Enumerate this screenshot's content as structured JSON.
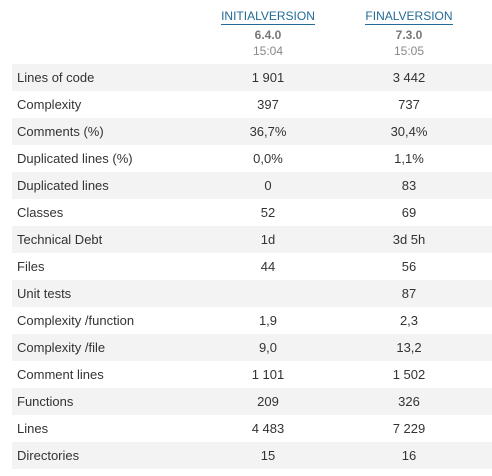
{
  "columns": [
    {
      "link": "INITIALVERSION",
      "version": "6.4.0",
      "time": "15:04"
    },
    {
      "link": "FINALVERSION",
      "version": "7.3.0",
      "time": "15:05"
    }
  ],
  "metrics": [
    {
      "label": "Lines of code",
      "initial": "1 901",
      "final": "3 442"
    },
    {
      "label": "Complexity",
      "initial": "397",
      "final": "737"
    },
    {
      "label": "Comments (%)",
      "initial": "36,7%",
      "final": "30,4%"
    },
    {
      "label": "Duplicated lines (%)",
      "initial": "0,0%",
      "final": "1,1%"
    },
    {
      "label": "Duplicated lines",
      "initial": "0",
      "final": "83"
    },
    {
      "label": "Classes",
      "initial": "52",
      "final": "69"
    },
    {
      "label": "Technical Debt",
      "initial": "1d",
      "final": "3d 5h"
    },
    {
      "label": "Files",
      "initial": "44",
      "final": "56"
    },
    {
      "label": "Unit tests",
      "initial": "",
      "final": "87"
    },
    {
      "label": "Complexity /function",
      "initial": "1,9",
      "final": "2,3"
    },
    {
      "label": "Complexity /file",
      "initial": "9,0",
      "final": "13,2"
    },
    {
      "label": "Comment lines",
      "initial": "1 101",
      "final": "1 502"
    },
    {
      "label": "Functions",
      "initial": "209",
      "final": "326"
    },
    {
      "label": "Lines",
      "initial": "4 483",
      "final": "7 229"
    },
    {
      "label": "Directories",
      "initial": "15",
      "final": "16"
    }
  ]
}
